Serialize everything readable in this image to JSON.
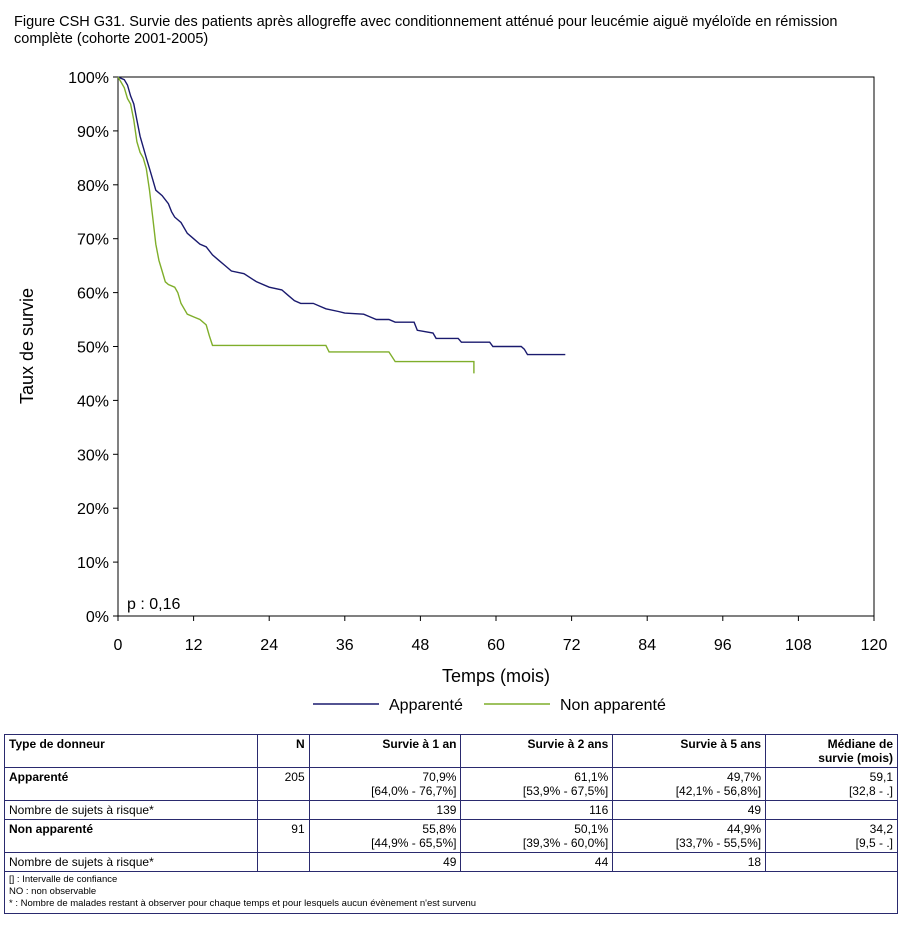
{
  "figure_title": "Figure CSH G31. Survie des patients après allogreffe avec conditionnement atténué pour leucémie aiguë myéloïde en rémission complète (cohorte 2001-2005)",
  "chart_data": {
    "type": "line",
    "title": "",
    "xlabel": "Temps (mois)",
    "ylabel": "Taux de survie",
    "xlim": [
      0,
      120
    ],
    "ylim": [
      0,
      100
    ],
    "x_ticks": [
      0,
      12,
      24,
      36,
      48,
      60,
      72,
      84,
      96,
      108,
      120
    ],
    "y_ticks": [
      0,
      10,
      20,
      30,
      40,
      50,
      60,
      70,
      80,
      90,
      100
    ],
    "y_tick_labels": [
      "0%",
      "10%",
      "20%",
      "30%",
      "40%",
      "50%",
      "60%",
      "70%",
      "80%",
      "90%",
      "100%"
    ],
    "annotation": "p : 0,16",
    "legend_position": "bottom",
    "series": [
      {
        "name": "Apparenté",
        "color": "#1a1a6e",
        "points": [
          [
            0,
            100
          ],
          [
            1,
            99.5
          ],
          [
            1.5,
            98.5
          ],
          [
            2,
            96.5
          ],
          [
            2.5,
            95
          ],
          [
            3,
            92
          ],
          [
            3.5,
            89
          ],
          [
            4,
            87
          ],
          [
            4.5,
            85
          ],
          [
            5,
            83
          ],
          [
            5.5,
            81
          ],
          [
            6,
            79
          ],
          [
            7,
            78
          ],
          [
            8,
            76.5
          ],
          [
            8.5,
            75
          ],
          [
            9,
            74
          ],
          [
            10,
            73
          ],
          [
            11,
            71
          ],
          [
            12,
            70
          ],
          [
            13,
            69
          ],
          [
            14,
            68.5
          ],
          [
            15,
            67
          ],
          [
            16,
            66
          ],
          [
            17,
            65
          ],
          [
            18,
            64
          ],
          [
            20,
            63.5
          ],
          [
            22,
            62
          ],
          [
            24,
            61
          ],
          [
            26,
            60.5
          ],
          [
            27,
            59.5
          ],
          [
            28,
            58.5
          ],
          [
            29,
            58
          ],
          [
            31,
            58
          ],
          [
            32,
            57.5
          ],
          [
            33,
            57
          ],
          [
            35,
            56.5
          ],
          [
            36,
            56.2
          ],
          [
            39,
            56
          ],
          [
            40,
            55.5
          ],
          [
            41,
            55
          ],
          [
            43,
            55
          ],
          [
            44,
            54.5
          ],
          [
            47,
            54.5
          ],
          [
            47.5,
            53
          ],
          [
            50,
            52.5
          ],
          [
            50.5,
            51.5
          ],
          [
            54,
            51.5
          ],
          [
            54.5,
            50.8
          ],
          [
            59,
            50.8
          ],
          [
            59.5,
            50
          ],
          [
            64,
            50
          ],
          [
            64.5,
            49.5
          ],
          [
            65,
            48.5
          ],
          [
            71,
            48.5
          ]
        ]
      },
      {
        "name": "Non apparenté",
        "color": "#7fae2a",
        "points": [
          [
            0,
            100
          ],
          [
            0.5,
            99
          ],
          [
            1,
            98
          ],
          [
            1.5,
            96
          ],
          [
            2,
            95
          ],
          [
            2.5,
            92
          ],
          [
            3,
            88
          ],
          [
            3.5,
            86
          ],
          [
            4,
            85
          ],
          [
            4.5,
            83
          ],
          [
            5,
            79
          ],
          [
            5.5,
            74
          ],
          [
            6,
            69
          ],
          [
            6.5,
            66
          ],
          [
            7,
            64
          ],
          [
            7.5,
            62
          ],
          [
            8,
            61.5
          ],
          [
            9,
            61
          ],
          [
            9.5,
            60
          ],
          [
            10,
            58
          ],
          [
            11,
            56
          ],
          [
            12,
            55.5
          ],
          [
            13,
            55
          ],
          [
            14,
            54
          ],
          [
            14.5,
            52
          ],
          [
            15,
            50.2
          ],
          [
            33,
            50.2
          ],
          [
            33.5,
            49
          ],
          [
            43,
            49
          ],
          [
            44,
            47.2
          ],
          [
            56.5,
            47.2
          ],
          [
            56.5,
            45
          ]
        ]
      }
    ]
  },
  "table": {
    "headers": [
      "Type de donneur",
      "N",
      "Survie à 1 an",
      "Survie à 2 ans",
      "Survie à 5 ans",
      "Médiane de",
      "survie (mois)"
    ],
    "rows": [
      {
        "label": "Apparenté",
        "n": "205",
        "s1": "70,9%",
        "s1_ci": "[64,0% - 76,7%]",
        "s2": "61,1%",
        "s2_ci": "[53,9% - 67,5%]",
        "s5": "49,7%",
        "s5_ci": "[42,1% - 56,8%]",
        "med": "59,1",
        "med_ci": "[32,8 - .]"
      },
      {
        "label": "Nombre de sujets à risque*",
        "r1": "139",
        "r2": "116",
        "r5": "49"
      },
      {
        "label": "Non apparenté",
        "n": "91",
        "s1": "55,8%",
        "s1_ci": "[44,9% - 65,5%]",
        "s2": "50,1%",
        "s2_ci": "[39,3% - 60,0%]",
        "s5": "44,9%",
        "s5_ci": "[33,7% - 55,5%]",
        "med": "34,2",
        "med_ci": "[9,5 - .]"
      },
      {
        "label": "Nombre de sujets à risque*",
        "r1": "49",
        "r2": "44",
        "r5": "18"
      }
    ],
    "footnotes": [
      "[] : Intervalle de confiance",
      "NO : non observable",
      "* : Nombre de malades restant à observer pour chaque temps et pour lesquels aucun évènement n'est survenu"
    ]
  }
}
